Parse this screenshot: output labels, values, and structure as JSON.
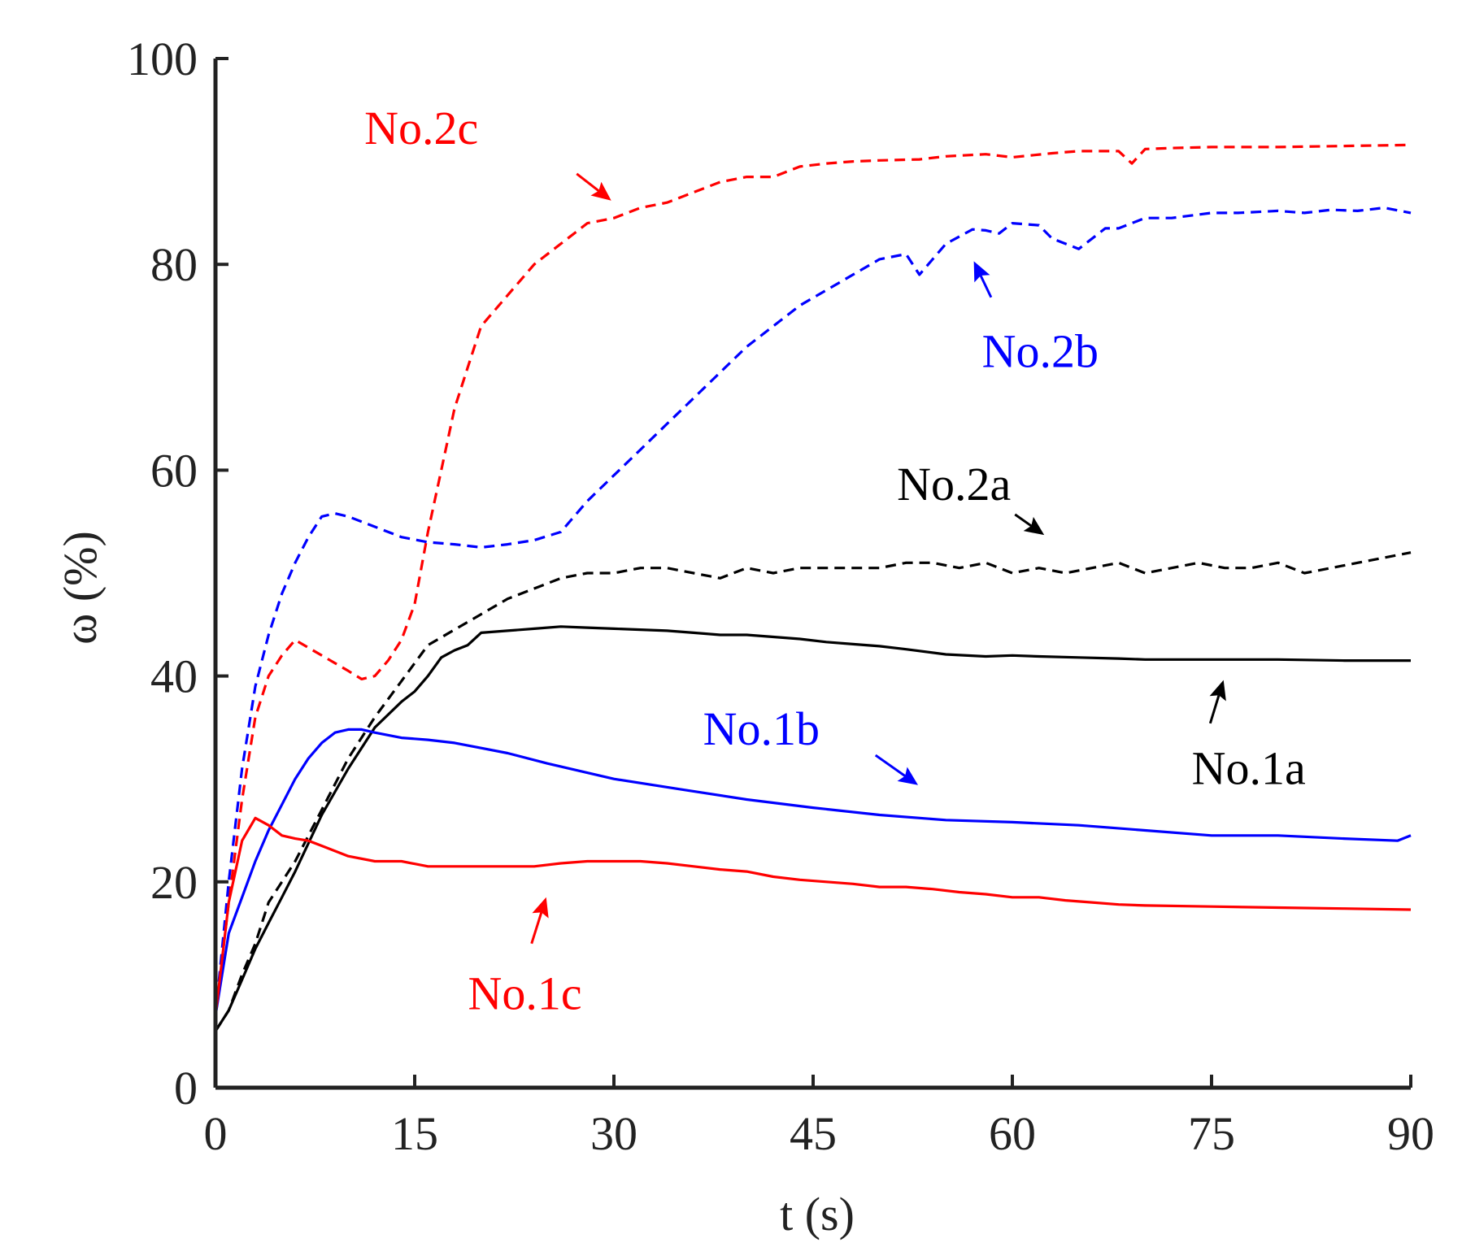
{
  "chart_data": {
    "type": "line",
    "title": "",
    "xlabel": "t (s)",
    "ylabel": "ω (%)",
    "xlim": [
      0,
      90
    ],
    "ylim": [
      0,
      100
    ],
    "xticks": [
      0,
      15,
      30,
      45,
      60,
      75,
      90
    ],
    "yticks": [
      0,
      20,
      40,
      60,
      80,
      100
    ],
    "grid": false,
    "series": [
      {
        "name": "No.2c",
        "color": "#ff0000",
        "style": "dashed",
        "x": [
          0,
          1,
          2,
          3,
          4,
          5,
          6,
          8,
          10,
          11,
          12,
          13,
          14,
          15,
          16,
          17,
          18,
          19,
          20,
          22,
          24,
          26,
          28,
          30,
          32,
          34,
          36,
          38,
          40,
          42,
          44,
          46,
          48,
          50,
          53,
          55,
          58,
          60,
          63,
          65,
          68,
          69,
          70,
          72,
          75,
          80,
          85,
          90
        ],
        "y": [
          7,
          18,
          28,
          36,
          40,
          42,
          43.5,
          42,
          40.5,
          39.7,
          40,
          41.5,
          43.5,
          47,
          54,
          60,
          66,
          70,
          74,
          77,
          80,
          82,
          84,
          84.5,
          85.5,
          86,
          87,
          88,
          88.5,
          88.5,
          89.5,
          89.8,
          90,
          90.1,
          90.2,
          90.5,
          90.7,
          90.4,
          90.8,
          91,
          91,
          89.8,
          91.2,
          91.3,
          91.4,
          91.4,
          91.5,
          91.6
        ]
      },
      {
        "name": "No.2b",
        "color": "#0000ff",
        "style": "dashed",
        "x": [
          0,
          1,
          2,
          3,
          4,
          5,
          6,
          7,
          8,
          9,
          10,
          11,
          12,
          14,
          16,
          18,
          20,
          22,
          24,
          26,
          28,
          30,
          32,
          34,
          36,
          38,
          40,
          42,
          44,
          46,
          48,
          50,
          52,
          53,
          55,
          57,
          58,
          59,
          60,
          62,
          63,
          65,
          67,
          68,
          70,
          72,
          75,
          77,
          80,
          82,
          84,
          86,
          88,
          90
        ],
        "y": [
          7,
          20,
          31,
          39,
          44,
          48,
          51,
          53.5,
          55.5,
          55.8,
          55.5,
          55,
          54.5,
          53.5,
          53,
          52.8,
          52.5,
          52.8,
          53.2,
          54,
          57,
          59.5,
          62,
          64.5,
          67,
          69.5,
          72,
          74,
          76,
          77.5,
          79,
          80.5,
          81,
          79,
          82,
          83.4,
          83.3,
          83,
          84,
          83.8,
          82.5,
          81.5,
          83.5,
          83.5,
          84.5,
          84.5,
          85,
          85,
          85.2,
          85,
          85.3,
          85.2,
          85.5,
          85
        ]
      },
      {
        "name": "No.2a",
        "color": "#000000",
        "style": "dashed",
        "x": [
          0,
          1,
          2,
          3,
          4,
          5,
          6,
          8,
          10,
          12,
          14,
          16,
          18,
          20,
          22,
          24,
          26,
          28,
          30,
          32,
          34,
          36,
          38,
          40,
          42,
          44,
          46,
          48,
          50,
          52,
          54,
          56,
          58,
          60,
          62,
          64,
          66,
          68,
          70,
          72,
          74,
          76,
          78,
          80,
          82,
          84,
          86,
          88,
          90
        ],
        "y": [
          5.5,
          7.5,
          11,
          14,
          18,
          20,
          22,
          27,
          32,
          36,
          39.5,
          43,
          44.5,
          46,
          47.5,
          48.5,
          49.5,
          50,
          50,
          50.5,
          50.5,
          50,
          49.5,
          50.5,
          50,
          50.5,
          50.5,
          50.5,
          50.5,
          51,
          51,
          50.5,
          51,
          50,
          50.5,
          50,
          50.5,
          51,
          50,
          50.5,
          51,
          50.5,
          50.5,
          51,
          50,
          50.5,
          51,
          51.5,
          52
        ]
      },
      {
        "name": "No.1a",
        "color": "#000000",
        "style": "solid",
        "x": [
          0,
          1,
          2,
          3,
          4,
          5,
          6,
          8,
          10,
          12,
          14,
          15,
          16,
          17,
          18,
          19,
          20,
          22,
          24,
          26,
          28,
          30,
          32,
          34,
          36,
          38,
          40,
          42,
          44,
          46,
          48,
          50,
          52,
          55,
          58,
          60,
          62,
          65,
          68,
          70,
          72,
          74,
          76,
          80,
          85,
          90
        ],
        "y": [
          5.5,
          7.5,
          10.5,
          13.5,
          16,
          18.5,
          21,
          26.5,
          31,
          35,
          37.5,
          38.5,
          40,
          41.8,
          42.5,
          43,
          44.2,
          44.4,
          44.6,
          44.8,
          44.7,
          44.6,
          44.5,
          44.4,
          44.2,
          44,
          44,
          43.8,
          43.6,
          43.3,
          43.1,
          42.9,
          42.6,
          42.1,
          41.9,
          42,
          41.9,
          41.8,
          41.7,
          41.6,
          41.6,
          41.6,
          41.6,
          41.6,
          41.5,
          41.5
        ]
      },
      {
        "name": "No.1b",
        "color": "#0000ff",
        "style": "solid",
        "x": [
          0,
          1,
          2,
          3,
          4,
          5,
          6,
          7,
          8,
          9,
          10,
          11,
          12,
          14,
          16,
          18,
          20,
          22,
          25,
          30,
          35,
          40,
          45,
          50,
          55,
          60,
          65,
          70,
          75,
          80,
          85,
          89,
          90
        ],
        "y": [
          7,
          15,
          18.5,
          22,
          25,
          27.5,
          30,
          32,
          33.5,
          34.5,
          34.8,
          34.8,
          34.5,
          34,
          33.8,
          33.5,
          33,
          32.5,
          31.5,
          30,
          29,
          28,
          27.2,
          26.5,
          26,
          25.8,
          25.5,
          25,
          24.5,
          24.5,
          24.2,
          24,
          24.5
        ]
      },
      {
        "name": "No.1c",
        "color": "#ff0000",
        "style": "solid",
        "x": [
          0,
          1,
          2,
          3,
          4,
          5,
          6,
          7,
          8,
          10,
          12,
          14,
          16,
          18,
          20,
          22,
          24,
          26,
          28,
          30,
          32,
          34,
          36,
          38,
          40,
          42,
          44,
          46,
          48,
          50,
          52,
          54,
          56,
          58,
          60,
          62,
          64,
          66,
          68,
          70,
          75,
          80,
          85,
          90
        ],
        "y": [
          7,
          18,
          24,
          26.2,
          25.5,
          24.5,
          24.2,
          24,
          23.5,
          22.5,
          22,
          22,
          21.5,
          21.5,
          21.5,
          21.5,
          21.5,
          21.8,
          22,
          22,
          22,
          21.8,
          21.5,
          21.2,
          21,
          20.5,
          20.2,
          20,
          19.8,
          19.5,
          19.5,
          19.3,
          19,
          18.8,
          18.5,
          18.5,
          18.2,
          18,
          17.8,
          17.7,
          17.6,
          17.5,
          17.4,
          17.3
        ]
      }
    ],
    "annotations": [
      {
        "text": "No.2c",
        "series": "No.2c",
        "color": "#ff0000",
        "text_at": [
          15.5,
          93.3
        ],
        "arrow_from": [
          27.2,
          88.8
        ],
        "arrow_to": [
          29.8,
          86.2
        ]
      },
      {
        "text": "No.2b",
        "series": "No.2b",
        "color": "#0000ff",
        "text_at": [
          62.1,
          71.6
        ],
        "arrow_from": [
          58.4,
          76.8
        ],
        "arrow_to": [
          57.1,
          80.3
        ]
      },
      {
        "text": "No.2a",
        "series": "No.2a",
        "color": "#000000",
        "text_at": [
          55.6,
          58.7
        ],
        "arrow_from": [
          60.2,
          55.7
        ],
        "arrow_to": [
          62.4,
          53.7
        ]
      },
      {
        "text": "No.1a",
        "series": "No.1a",
        "color": "#000000",
        "text_at": [
          77.8,
          31.1
        ],
        "arrow_from": [
          74.9,
          35.4
        ],
        "arrow_to": [
          75.9,
          39.6
        ]
      },
      {
        "text": "No.1b",
        "series": "No.1b",
        "color": "#0000ff",
        "text_at": [
          41.1,
          34.9
        ],
        "arrow_from": [
          49.7,
          32.3
        ],
        "arrow_to": [
          52.9,
          29.4
        ]
      },
      {
        "text": "No.1c",
        "series": "No.1c",
        "color": "#ff0000",
        "text_at": [
          23.3,
          9.2
        ],
        "arrow_from": [
          23.8,
          14.0
        ],
        "arrow_to": [
          24.9,
          18.5
        ]
      }
    ]
  }
}
